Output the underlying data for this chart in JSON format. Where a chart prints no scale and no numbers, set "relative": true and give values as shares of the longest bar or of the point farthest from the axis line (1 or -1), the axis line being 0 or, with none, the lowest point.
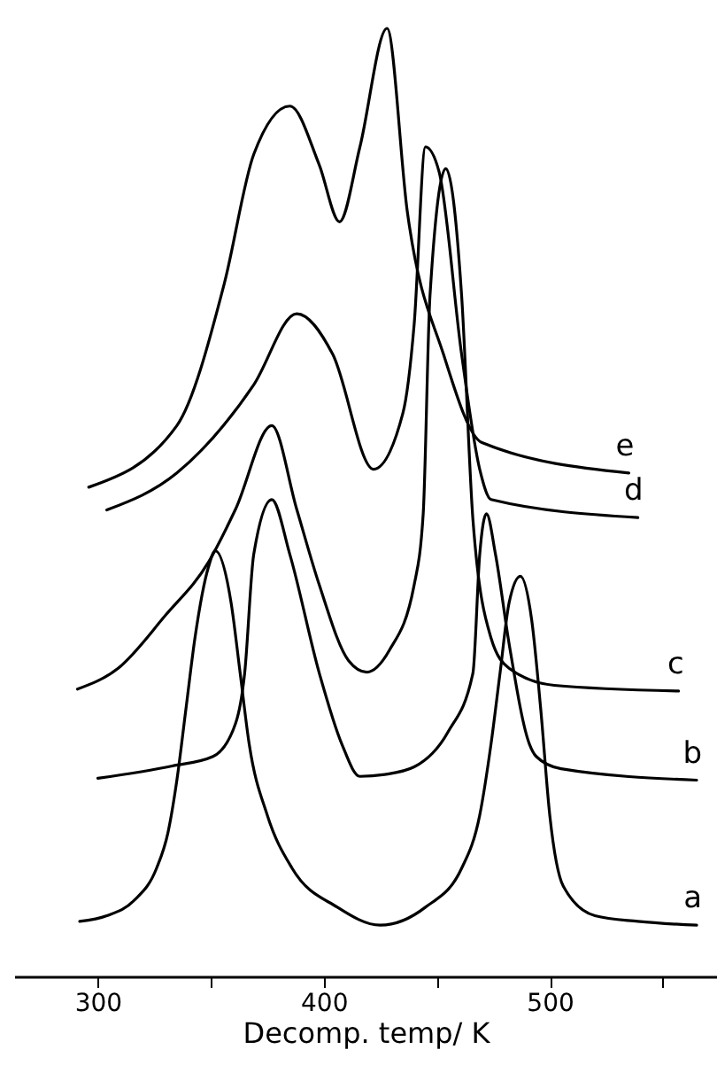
{
  "chart_data": {
    "type": "line",
    "relative": true,
    "xlabel": "Decomp. temp/ K",
    "xlim": [
      263,
      574
    ],
    "xticks": [
      300,
      {
        "value": 350,
        "label": null
      },
      400,
      {
        "value": 450,
        "label": null
      },
      500,
      {
        "value": 550,
        "label": null
      }
    ],
    "series": [
      {
        "name": "a",
        "color": "#000000",
        "x": [
          292,
          304,
          316,
          326,
          331,
          335,
          339,
          343,
          349,
          352,
          359,
          363,
          367,
          375,
          386,
          406,
          425,
          445,
          461,
          469,
          474,
          478,
          482,
          487,
          492,
          496,
          500,
          506,
          520,
          539,
          565
        ],
        "values": [
          0.058,
          0.064,
          0.08,
          0.114,
          0.151,
          0.207,
          0.282,
          0.357,
          0.432,
          0.449,
          0.394,
          0.32,
          0.245,
          0.17,
          0.114,
          0.073,
          0.054,
          0.073,
          0.114,
          0.17,
          0.245,
          0.32,
          0.394,
          0.422,
          0.376,
          0.282,
          0.17,
          0.095,
          0.064,
          0.058,
          0.054
        ]
      },
      {
        "name": "b",
        "color": "#000000",
        "x": [
          300,
          333,
          351,
          361,
          365,
          369,
          377,
          385,
          398,
          408,
          416,
          427,
          440,
          455,
          466,
          469,
          472,
          476,
          482,
          491,
          494,
          505,
          565
        ],
        "values": [
          0.209,
          0.222,
          0.232,
          0.267,
          0.32,
          0.445,
          0.503,
          0.445,
          0.32,
          0.245,
          0.211,
          0.213,
          0.221,
          0.258,
          0.32,
          0.445,
          0.488,
          0.445,
          0.351,
          0.245,
          0.232,
          0.219,
          0.207
        ]
      },
      {
        "name": "c",
        "color": "#000000",
        "x": [
          291,
          309,
          330,
          349,
          361,
          377,
          388,
          398,
          411,
          419,
          429,
          440,
          444,
          447,
          454,
          461,
          466,
          474,
          482,
          502,
          557
        ],
        "values": [
          0.303,
          0.325,
          0.381,
          0.437,
          0.493,
          0.581,
          0.493,
          0.413,
          0.333,
          0.321,
          0.344,
          0.413,
          0.488,
          0.718,
          0.852,
          0.718,
          0.482,
          0.357,
          0.325,
          0.307,
          0.301
        ]
      },
      {
        "name": "d",
        "color": "#000000",
        "x": [
          304,
          335,
          369,
          388,
          404,
          422,
          435,
          440,
          445,
          451,
          461,
          469,
          474,
          539
        ],
        "values": [
          0.492,
          0.531,
          0.624,
          0.699,
          0.656,
          0.535,
          0.594,
          0.688,
          0.875,
          0.849,
          0.656,
          0.535,
          0.503,
          0.484
        ]
      },
      {
        "name": "e",
        "color": "#000000",
        "x": [
          296,
          335,
          356,
          369,
          385,
          398,
          407,
          416,
          428,
          437,
          453,
          470,
          535
        ],
        "values": [
          0.516,
          0.581,
          0.731,
          0.867,
          0.918,
          0.856,
          0.796,
          0.875,
          1,
          0.806,
          0.656,
          0.563,
          0.531
        ]
      }
    ]
  }
}
